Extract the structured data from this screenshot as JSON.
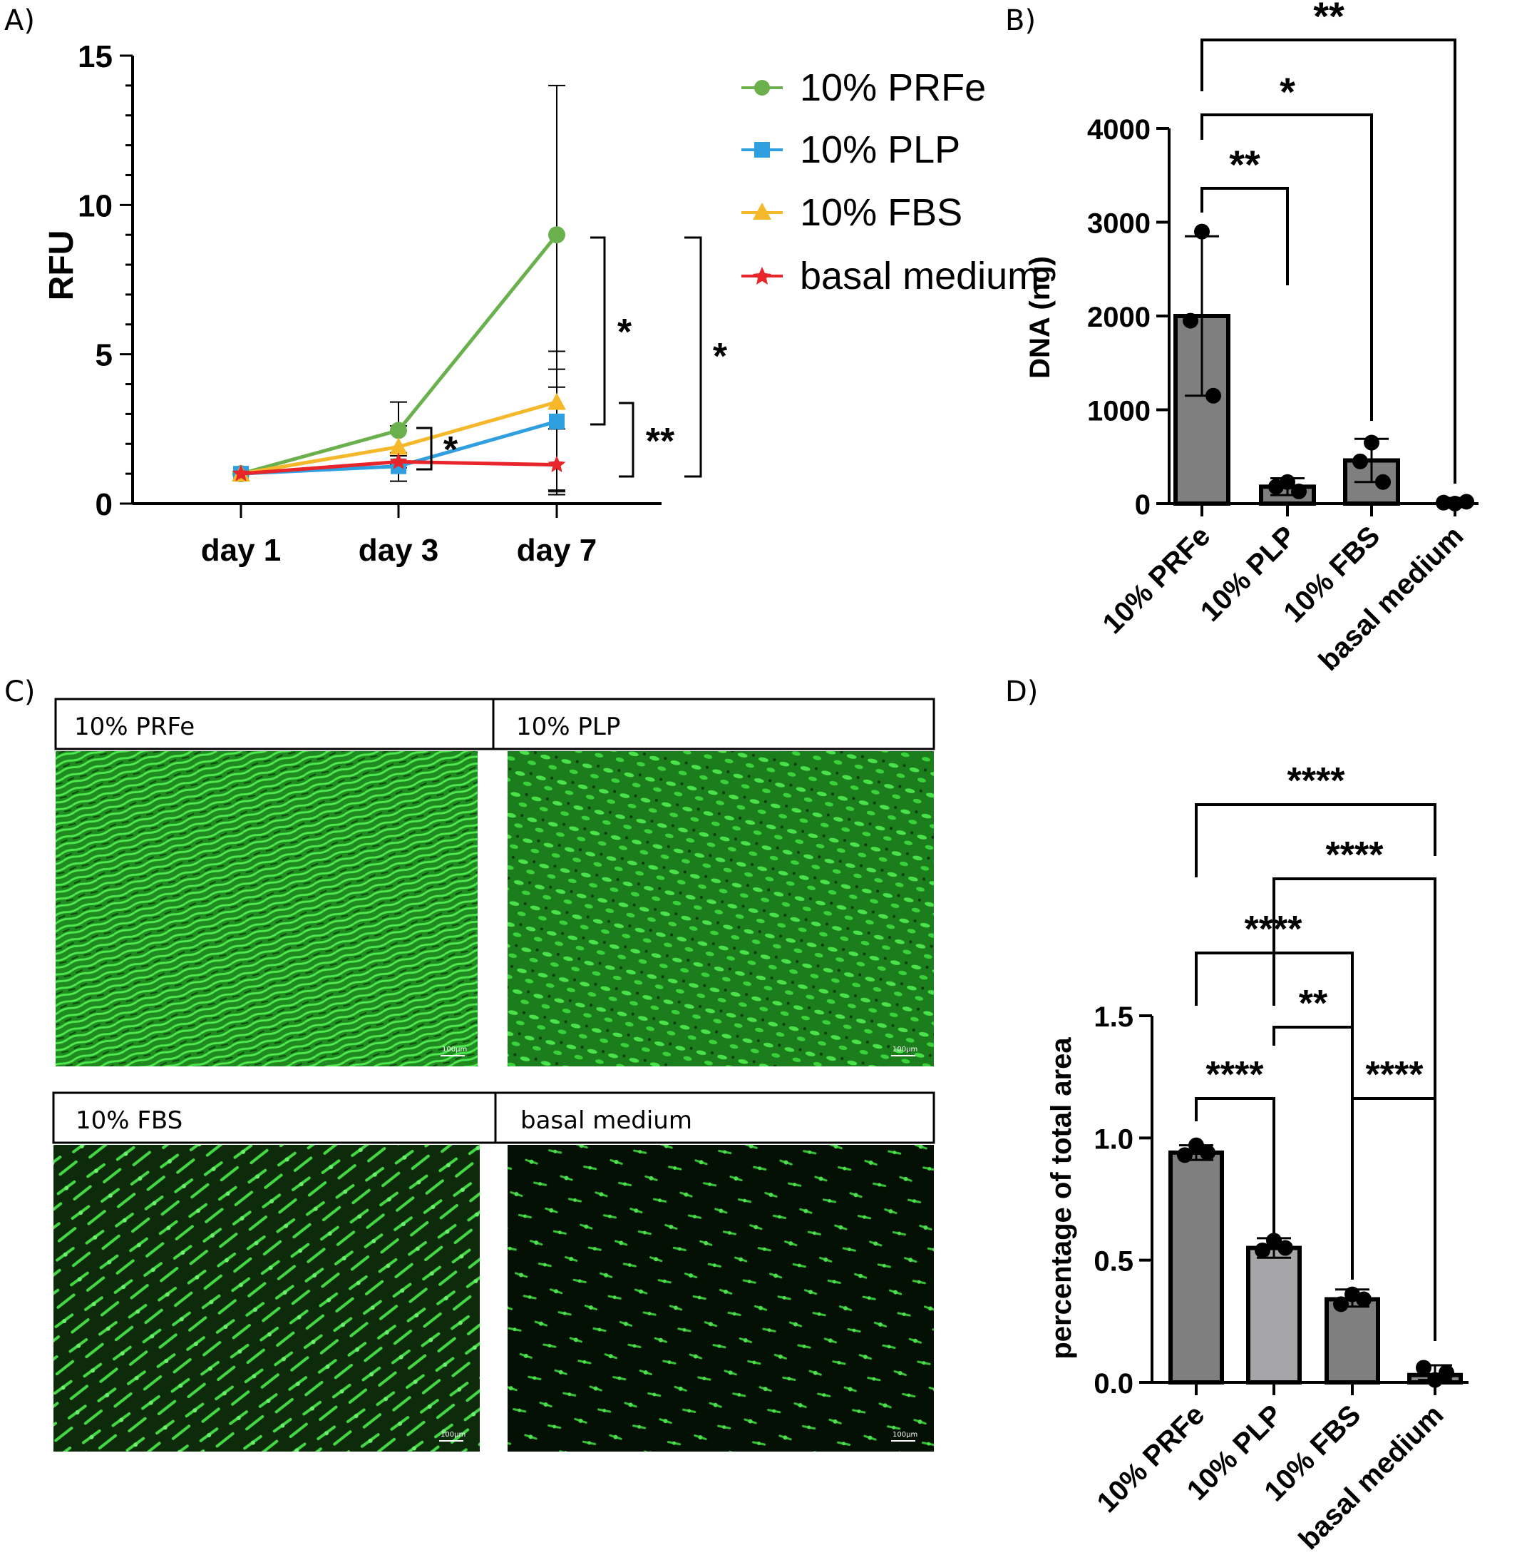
{
  "panels": {
    "a": "A)",
    "b": "B)",
    "c": "C)",
    "d": "D)"
  },
  "chart_data": [
    {
      "id": "A",
      "type": "line",
      "xlabel": "",
      "ylabel": "RFU",
      "categories": [
        "day 1",
        "day 3",
        "day 7"
      ],
      "ylim": [
        0,
        15
      ],
      "yticks": [
        "0",
        "5",
        "10",
        "15"
      ],
      "series": [
        {
          "name": "10% PRFe",
          "color": "#6ab04c",
          "marker": "circle",
          "values": [
            1.0,
            2.45,
            9.0
          ],
          "err_low": [
            1.0,
            1.6,
            0.3
          ],
          "err_high": [
            1.0,
            3.4,
            14.0
          ]
        },
        {
          "name": "10% PLP",
          "color": "#2f9fe0",
          "marker": "square",
          "values": [
            1.0,
            1.25,
            2.75
          ],
          "err_low": [
            1.0,
            0.75,
            0.45
          ],
          "err_high": [
            1.0,
            1.7,
            5.1
          ]
        },
        {
          "name": "10% FBS",
          "color": "#f5b82a",
          "marker": "triangle",
          "values": [
            1.0,
            1.9,
            3.4
          ],
          "err_low": [
            1.0,
            1.3,
            2.5
          ],
          "err_high": [
            1.0,
            2.6,
            4.5
          ]
        },
        {
          "name": "basal medium",
          "color": "#e8252a",
          "marker": "star",
          "values": [
            1.0,
            1.4,
            1.3
          ],
          "err_low": [
            1.0,
            1.2,
            0.4
          ],
          "err_high": [
            1.0,
            1.6,
            3.9
          ]
        }
      ],
      "significance": [
        "*",
        "*",
        "*",
        "**"
      ]
    },
    {
      "id": "B",
      "type": "bar",
      "xlabel": "",
      "ylabel": "DNA (ng)",
      "categories": [
        "10% PRFe",
        "10% PLP",
        "10% FBS",
        "basal medium"
      ],
      "values": [
        2000,
        180,
        460,
        0
      ],
      "err_low": [
        1150,
        90,
        230,
        0
      ],
      "err_high": [
        2850,
        270,
        690,
        60
      ],
      "points": [
        [
          2900,
          1950,
          1150
        ],
        [
          230,
          180,
          130
        ],
        [
          650,
          450,
          230
        ],
        [
          0,
          10,
          20
        ]
      ],
      "ylim": [
        0,
        4000
      ],
      "yticks": [
        "0",
        "1000",
        "2000",
        "3000",
        "4000"
      ],
      "significance": [
        "**",
        "*",
        "**"
      ]
    },
    {
      "id": "D",
      "type": "bar",
      "xlabel": "",
      "ylabel": "percentage of total area",
      "categories": [
        "10% PRFe",
        "10% PLP",
        "10% FBS",
        "basal medium"
      ],
      "values": [
        0.94,
        0.55,
        0.34,
        0.03
      ],
      "err_low": [
        0.91,
        0.51,
        0.31,
        0.01
      ],
      "err_high": [
        0.97,
        0.59,
        0.38,
        0.07
      ],
      "points": [
        [
          0.97,
          0.93,
          0.94
        ],
        [
          0.58,
          0.54,
          0.55
        ],
        [
          0.36,
          0.32,
          0.34
        ],
        [
          0.01,
          0.06,
          0.04
        ]
      ],
      "bar_colors": [
        "#7f7f7f",
        "#a6a6a8",
        "#7f7f7f",
        "#8a8a8a"
      ],
      "ylim": [
        0,
        1.5
      ],
      "yticks": [
        "0.0",
        "0.5",
        "1.0",
        "1.5"
      ],
      "significance": [
        "****",
        "****",
        "****",
        "**",
        "****",
        "****"
      ]
    }
  ],
  "micrographs": [
    {
      "label": "10% PRFe",
      "scale_bar": "100μm"
    },
    {
      "label": "10% PLP",
      "scale_bar": "100μm"
    },
    {
      "label": "10% FBS",
      "scale_bar": "100μm"
    },
    {
      "label": "basal medium",
      "scale_bar": "100μm"
    }
  ]
}
